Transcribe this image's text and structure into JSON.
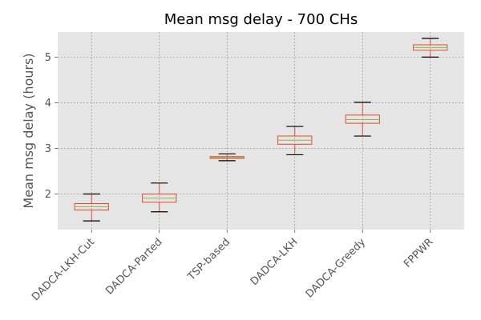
{
  "chart_data": {
    "type": "box",
    "title": "Mean msg delay - 700 CHs",
    "xlabel": "",
    "ylabel": "Mean msg delay (hours)",
    "ylim": [
      1.22,
      5.55
    ],
    "yticks": [
      2,
      3,
      4,
      5
    ],
    "grid": true,
    "categories": [
      "DADCA-LKH-Cut",
      "DADCA-Parted",
      "TSP-based",
      "DADCA-LKH",
      "DADCA-Greedy",
      "FPPWR"
    ],
    "boxes": [
      {
        "whislo": 1.41,
        "q1": 1.65,
        "med": 1.72,
        "q3": 1.79,
        "whishi": 2.0
      },
      {
        "whislo": 1.61,
        "q1": 1.82,
        "med": 1.91,
        "q3": 2.0,
        "whishi": 2.24
      },
      {
        "whislo": 2.73,
        "q1": 2.78,
        "med": 2.8,
        "q3": 2.82,
        "whishi": 2.88
      },
      {
        "whislo": 2.86,
        "q1": 3.09,
        "med": 3.18,
        "q3": 3.27,
        "whishi": 3.48
      },
      {
        "whislo": 3.27,
        "q1": 3.55,
        "med": 3.63,
        "q3": 3.73,
        "whishi": 4.01
      },
      {
        "whislo": 5.0,
        "q1": 5.15,
        "med": 5.21,
        "q3": 5.27,
        "whishi": 5.41
      }
    ],
    "colors": {
      "background": "#e5e5e5",
      "grid": "#888888",
      "box": "#e24a33",
      "median": "#8eba42",
      "whisker_cap": "#000000"
    }
  }
}
